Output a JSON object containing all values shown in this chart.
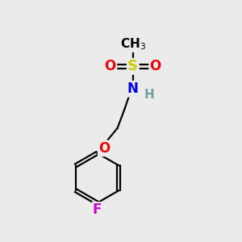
{
  "background_color": "#ebebeb",
  "atom_colors": {
    "C": "#000000",
    "H": "#70a0a0",
    "N": "#0000ee",
    "O": "#ee0000",
    "S": "#cccc00",
    "F": "#cc00cc"
  },
  "bond_color": "#000000",
  "bond_width": 1.6,
  "figsize": [
    3.0,
    3.0
  ],
  "dpi": 100,
  "font_size": 11
}
